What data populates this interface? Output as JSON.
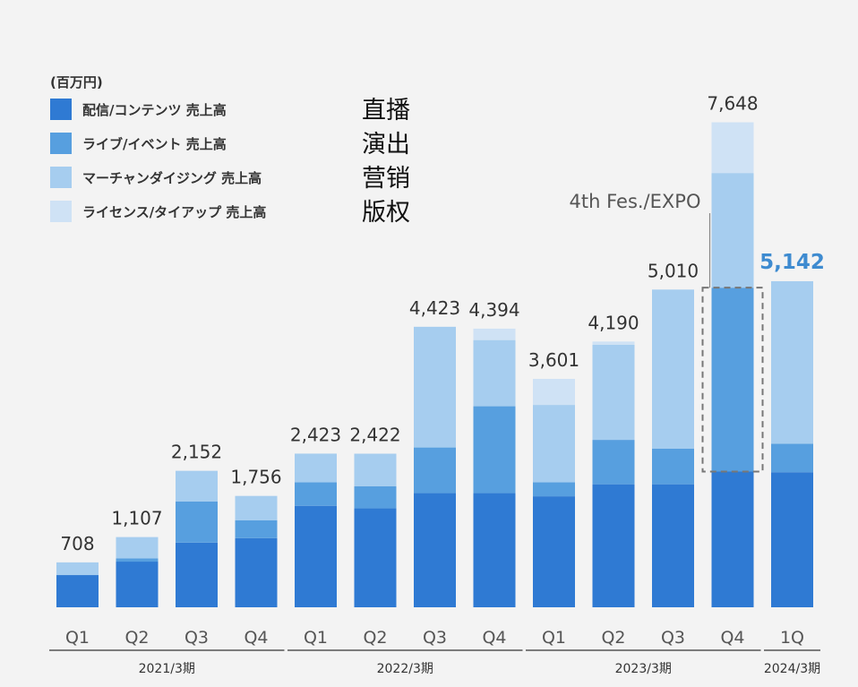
{
  "chart_data": {
    "type": "bar",
    "stacked": true,
    "unit_label": "(百万円)",
    "series": [
      {
        "name": "配信/コンテンツ 売上高",
        "cn_label": "直播",
        "color": "#2f7ad3",
        "values": [
          508,
          720,
          1020,
          1090,
          1600,
          1560,
          1800,
          1800,
          1750,
          1940,
          1940,
          2140,
          2130
        ]
      },
      {
        "name": "ライブ/イベント 売上高",
        "cn_label": "演出",
        "color": "#579fdf",
        "values": [
          0,
          50,
          650,
          280,
          370,
          350,
          720,
          1370,
          220,
          700,
          560,
          2900,
          450
        ]
      },
      {
        "name": "マーチャンダイジング 売上高",
        "cn_label": "营销",
        "color": "#a6cdef",
        "values": [
          200,
          337,
          482,
          386,
          453,
          512,
          1903,
          1044,
          1221,
          1500,
          2510,
          1808,
          2562
        ]
      },
      {
        "name": "ライセンス/タイアップ 売上高",
        "cn_label": "版权",
        "color": "#cfe2f5",
        "values": [
          0,
          0,
          0,
          0,
          0,
          0,
          0,
          180,
          410,
          50,
          0,
          800,
          0
        ]
      }
    ],
    "categories": [
      "Q1",
      "Q2",
      "Q3",
      "Q4",
      "Q1",
      "Q2",
      "Q3",
      "Q4",
      "Q1",
      "Q2",
      "Q3",
      "Q4",
      "1Q"
    ],
    "totals": [
      "708",
      "1,107",
      "2,152",
      "1,756",
      "2,423",
      "2,422",
      "4,423",
      "4,394",
      "3,601",
      "4,190",
      "5,010",
      "7,648",
      "5,142"
    ],
    "highlight_index": 12,
    "highlight_color": "#3e8bd0",
    "groups": [
      {
        "label": "2021/3期",
        "start": 0,
        "end": 3
      },
      {
        "label": "2022/3期",
        "start": 4,
        "end": 7
      },
      {
        "label": "2023/3期",
        "start": 8,
        "end": 11
      },
      {
        "label": "2024/3期",
        "start": 12,
        "end": 12
      }
    ],
    "annotation": {
      "text": "4th Fes./EXPO",
      "bar_index": 11,
      "series_index": 1
    },
    "ylim": [
      0,
      8000
    ],
    "grid": false,
    "legend_position": "top-left"
  }
}
